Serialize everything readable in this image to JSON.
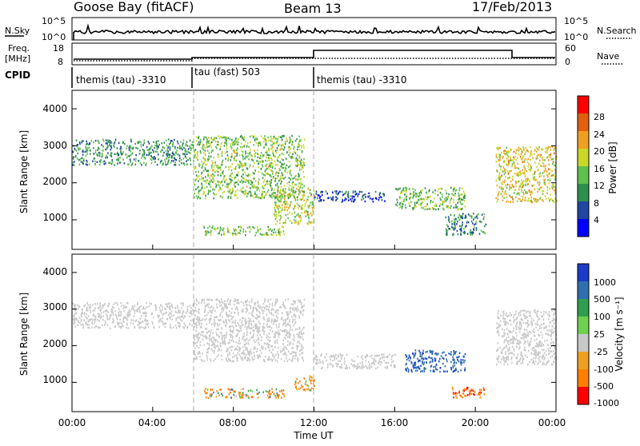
{
  "header": {
    "station": "Goose Bay (fitACF)",
    "beam": "Beam 13",
    "date": "17/Feb/2013"
  },
  "nsky_panel": {
    "left_label": "N.Sky",
    "right_label": "N.Search",
    "left_ticks": [
      "10^5",
      "10^0"
    ],
    "right_ticks": [
      "10^5",
      "10^0"
    ]
  },
  "freq_panel": {
    "left_label_1": "Freq.",
    "left_label_2": "[MHz]",
    "right_label": "Nave",
    "left_ticks": [
      "18",
      "8"
    ],
    "right_ticks": [
      "60",
      "0"
    ]
  },
  "cpid": {
    "label": "CPID",
    "segments": [
      {
        "label": "themis (tau) -3310",
        "start_hour": 0
      },
      {
        "label": "tau (fast) 503",
        "start_hour": 6
      },
      {
        "label": "themis (tau) -3310",
        "start_hour": 12
      }
    ]
  },
  "power_panel": {
    "ylabel": "Slant Range [km]",
    "yticks": [
      "1000",
      "2000",
      "3000",
      "4000"
    ],
    "colorbar_label": "Power [dB]",
    "colorbar_ticks": [
      "4",
      "8",
      "12",
      "16",
      "20",
      "24",
      "28"
    ]
  },
  "velocity_panel": {
    "ylabel": "Slant Range [km]",
    "yticks": [
      "1000",
      "2000",
      "3000",
      "4000"
    ],
    "colorbar_label": "Velocity [m s⁻¹]",
    "colorbar_ticks": [
      "1000",
      "500",
      "100",
      "25",
      "-25",
      "-100",
      "-500",
      "-1000"
    ]
  },
  "time_axis": {
    "xlabel": "Time UT",
    "ticks": [
      "00:00",
      "04:00",
      "08:00",
      "12:00",
      "16:00",
      "20:00",
      "00:00"
    ]
  },
  "colors": {
    "power_scale": [
      "#0000ff",
      "#1f46a0",
      "#2f8f4f",
      "#5fbf4f",
      "#c8d828",
      "#f0a020",
      "#e06010",
      "#ff0000"
    ],
    "velocity_scale": [
      "#1a3cc8",
      "#2f6fb0",
      "#2f9f4f",
      "#6fd04f",
      "#c8c8c8",
      "#f0a020",
      "#ff8000",
      "#ff0000"
    ],
    "ground_scatter": "#c8c8c8"
  },
  "chart_data": [
    {
      "type": "heatmap",
      "quantity": "Power",
      "units": "dB",
      "x_range_hours": [
        0,
        24
      ],
      "y_range_km": [
        200,
        4500
      ],
      "color_range": [
        0,
        30
      ],
      "features": [
        {
          "t_start": 0.0,
          "t_end": 6.0,
          "r_start": 2500,
          "r_end": 3200,
          "level": 10
        },
        {
          "t_start": 6.0,
          "t_end": 11.5,
          "r_start": 1600,
          "r_end": 3300,
          "level": 14
        },
        {
          "t_start": 6.5,
          "t_end": 10.5,
          "r_start": 600,
          "r_end": 850,
          "level": 13
        },
        {
          "t_start": 10.0,
          "t_end": 12.0,
          "r_start": 900,
          "r_end": 1900,
          "level": 16
        },
        {
          "t_start": 12.0,
          "t_end": 15.5,
          "r_start": 1500,
          "r_end": 1800,
          "level": 5
        },
        {
          "t_start": 16.0,
          "t_end": 19.5,
          "r_start": 1300,
          "r_end": 1900,
          "level": 13
        },
        {
          "t_start": 18.5,
          "t_end": 20.5,
          "r_start": 600,
          "r_end": 1200,
          "level": 9
        },
        {
          "t_start": 21.0,
          "t_end": 24.0,
          "r_start": 1500,
          "r_end": 3000,
          "level": 18
        }
      ]
    },
    {
      "type": "heatmap",
      "quantity": "Velocity",
      "units": "m/s",
      "x_range_hours": [
        0,
        24
      ],
      "y_range_km": [
        200,
        4500
      ],
      "color_range": [
        -1000,
        1000
      ],
      "features": [
        {
          "t_start": 0.0,
          "t_end": 6.0,
          "r_start": 2500,
          "r_end": 3200,
          "velocity": 0
        },
        {
          "t_start": 6.0,
          "t_end": 11.5,
          "r_start": 1600,
          "r_end": 3300,
          "velocity": 0
        },
        {
          "t_start": 6.5,
          "t_end": 10.5,
          "r_start": 600,
          "r_end": 850,
          "velocity": -150
        },
        {
          "t_start": 11.0,
          "t_end": 12.0,
          "r_start": 800,
          "r_end": 1200,
          "velocity": -200
        },
        {
          "t_start": 12.0,
          "t_end": 16.0,
          "r_start": 1400,
          "r_end": 1800,
          "velocity": 0
        },
        {
          "t_start": 16.5,
          "t_end": 19.5,
          "r_start": 1300,
          "r_end": 1900,
          "velocity": 400
        },
        {
          "t_start": 18.8,
          "t_end": 20.5,
          "r_start": 600,
          "r_end": 900,
          "velocity": -400
        },
        {
          "t_start": 21.0,
          "t_end": 24.0,
          "r_start": 1500,
          "r_end": 3000,
          "velocity": 0
        }
      ]
    }
  ]
}
